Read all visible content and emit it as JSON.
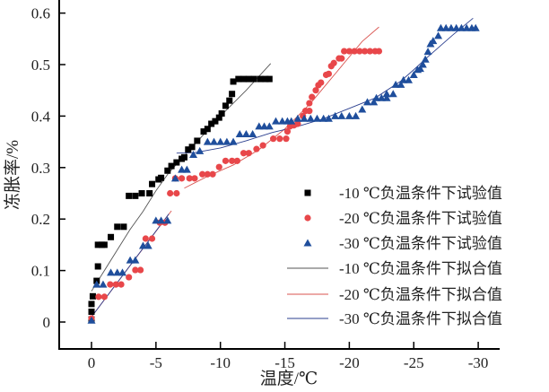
{
  "chart_data": {
    "type": "scatter",
    "title": "",
    "xlabel": "温度/℃",
    "ylabel": "冻胀率/%",
    "xlim": [
      2.5,
      -31.5
    ],
    "ylim": [
      -0.052,
      0.62
    ],
    "x_reversed": true,
    "grid": false,
    "legend_position": "right-middle",
    "xticks": [
      0,
      -5,
      -10,
      -15,
      -20,
      -25,
      -30
    ],
    "xtick_labels": [
      "0",
      "-5",
      "-10",
      "-15",
      "-20",
      "-25",
      "-30"
    ],
    "yticks": [
      0,
      0.1,
      0.2,
      0.3,
      0.4,
      0.5,
      0.6
    ],
    "ytick_labels": [
      "0",
      "0.1",
      "0.2",
      "0.3",
      "0.4",
      "0.5",
      "0.6"
    ],
    "series": [
      {
        "name": "-10 ℃负温条件下试验值",
        "kind": "marker",
        "marker": "square",
        "color": "#000000",
        "points": [
          [
            0,
            0.005
          ],
          [
            0,
            0.02
          ],
          [
            0,
            0.035
          ],
          [
            -0.1,
            0.05
          ],
          [
            -0.4,
            0.08
          ],
          [
            -0.5,
            0.108
          ],
          [
            -0.5,
            0.15
          ],
          [
            -0.8,
            0.15
          ],
          [
            -1.0,
            0.15
          ],
          [
            -1.5,
            0.165
          ],
          [
            -2.0,
            0.185
          ],
          [
            -2.5,
            0.185
          ],
          [
            -2.9,
            0.245
          ],
          [
            -3.4,
            0.245
          ],
          [
            -3.9,
            0.25
          ],
          [
            -4.5,
            0.25
          ],
          [
            -4.7,
            0.268
          ],
          [
            -5.2,
            0.277
          ],
          [
            -5.4,
            0.28
          ],
          [
            -5.9,
            0.294
          ],
          [
            -6.2,
            0.303
          ],
          [
            -6.6,
            0.31
          ],
          [
            -7.0,
            0.317
          ],
          [
            -7.2,
            0.32
          ],
          [
            -7.5,
            0.335
          ],
          [
            -7.8,
            0.34
          ],
          [
            -8.2,
            0.352
          ],
          [
            -8.7,
            0.37
          ],
          [
            -9.0,
            0.375
          ],
          [
            -9.3,
            0.385
          ],
          [
            -9.6,
            0.39
          ],
          [
            -9.9,
            0.397
          ],
          [
            -10.1,
            0.405
          ],
          [
            -10.4,
            0.42
          ],
          [
            -10.7,
            0.43
          ],
          [
            -10.9,
            0.443
          ],
          [
            -11.0,
            0.467
          ],
          [
            -11.4,
            0.472
          ],
          [
            -11.8,
            0.472
          ],
          [
            -12.2,
            0.472
          ],
          [
            -12.6,
            0.472
          ],
          [
            -13.1,
            0.472
          ],
          [
            -13.5,
            0.472
          ],
          [
            -13.8,
            0.472
          ]
        ]
      },
      {
        "name": "-20 ℃负温条件下试验值",
        "kind": "marker",
        "marker": "circle",
        "color": "#e8474a",
        "points": [
          [
            0,
            0.007
          ],
          [
            -0.55,
            0.049
          ],
          [
            -1.0,
            0.049
          ],
          [
            -1.45,
            0.073
          ],
          [
            -1.9,
            0.073
          ],
          [
            -2.3,
            0.073
          ],
          [
            -2.9,
            0.087
          ],
          [
            -3.4,
            0.101
          ],
          [
            -3.8,
            0.101
          ],
          [
            -4.2,
            0.162
          ],
          [
            -4.7,
            0.162
          ],
          [
            -5.3,
            0.193
          ],
          [
            -5.7,
            0.193
          ],
          [
            -6.1,
            0.25
          ],
          [
            -6.6,
            0.25
          ],
          [
            -6.5,
            0.279
          ],
          [
            -7.0,
            0.279
          ],
          [
            -7.6,
            0.279
          ],
          [
            -8.0,
            0.279
          ],
          [
            -8.6,
            0.287
          ],
          [
            -9.0,
            0.287
          ],
          [
            -9.4,
            0.287
          ],
          [
            -9.9,
            0.301
          ],
          [
            -10.4,
            0.313
          ],
          [
            -10.9,
            0.313
          ],
          [
            -11.3,
            0.313
          ],
          [
            -11.8,
            0.328
          ],
          [
            -12.2,
            0.328
          ],
          [
            -12.8,
            0.336
          ],
          [
            -13.3,
            0.343
          ],
          [
            -14.1,
            0.356
          ],
          [
            -14.6,
            0.356
          ],
          [
            -15.1,
            0.356
          ],
          [
            -15.2,
            0.37
          ],
          [
            -15.4,
            0.38
          ],
          [
            -15.7,
            0.382
          ],
          [
            -16.0,
            0.385
          ],
          [
            -16.4,
            0.4
          ],
          [
            -16.6,
            0.41
          ],
          [
            -16.9,
            0.41
          ],
          [
            -16.9,
            0.425
          ],
          [
            -17.1,
            0.437
          ],
          [
            -17.4,
            0.45
          ],
          [
            -17.6,
            0.46
          ],
          [
            -17.8,
            0.465
          ],
          [
            -18.2,
            0.48
          ],
          [
            -18.4,
            0.482
          ],
          [
            -18.6,
            0.497
          ],
          [
            -18.8,
            0.503
          ],
          [
            -19.2,
            0.512
          ],
          [
            -19.4,
            0.512
          ],
          [
            -19.6,
            0.526
          ],
          [
            -20.0,
            0.526
          ],
          [
            -20.4,
            0.526
          ],
          [
            -20.8,
            0.526
          ],
          [
            -21.2,
            0.526
          ],
          [
            -21.6,
            0.526
          ],
          [
            -22.0,
            0.526
          ],
          [
            -22.3,
            0.526
          ]
        ]
      },
      {
        "name": "-30 ℃负温条件下试验值",
        "kind": "marker",
        "marker": "triangle",
        "color": "#1f4e9c",
        "points": [
          [
            0,
            0.003
          ],
          [
            -0.4,
            0.073
          ],
          [
            -0.9,
            0.073
          ],
          [
            -1.5,
            0.096
          ],
          [
            -2.0,
            0.096
          ],
          [
            -2.4,
            0.096
          ],
          [
            -3.0,
            0.12
          ],
          [
            -3.4,
            0.12
          ],
          [
            -4.0,
            0.148
          ],
          [
            -4.4,
            0.148
          ],
          [
            -5.0,
            0.197
          ],
          [
            -5.4,
            0.197
          ],
          [
            -5.9,
            0.197
          ],
          [
            -6.5,
            0.279
          ],
          [
            -7.0,
            0.296
          ],
          [
            -7.4,
            0.296
          ],
          [
            -7.9,
            0.325
          ],
          [
            -8.4,
            0.332
          ],
          [
            -9.0,
            0.35
          ],
          [
            -9.5,
            0.35
          ],
          [
            -10.0,
            0.35
          ],
          [
            -10.5,
            0.35
          ],
          [
            -11.0,
            0.35
          ],
          [
            -11.5,
            0.365
          ],
          [
            -12.0,
            0.365
          ],
          [
            -12.5,
            0.365
          ],
          [
            -13.0,
            0.38
          ],
          [
            -13.4,
            0.38
          ],
          [
            -13.8,
            0.38
          ],
          [
            -14.3,
            0.39
          ],
          [
            -14.8,
            0.39
          ],
          [
            -15.2,
            0.39
          ],
          [
            -15.5,
            0.39
          ],
          [
            -16.0,
            0.395
          ],
          [
            -16.5,
            0.395
          ],
          [
            -17.0,
            0.395
          ],
          [
            -17.5,
            0.395
          ],
          [
            -18.0,
            0.395
          ],
          [
            -18.4,
            0.395
          ],
          [
            -18.9,
            0.4
          ],
          [
            -19.4,
            0.4
          ],
          [
            -20.0,
            0.4
          ],
          [
            -20.5,
            0.4
          ],
          [
            -21.0,
            0.413
          ],
          [
            -21.4,
            0.427
          ],
          [
            -21.9,
            0.427
          ],
          [
            -22.1,
            0.435
          ],
          [
            -22.5,
            0.435
          ],
          [
            -22.9,
            0.435
          ],
          [
            -22.9,
            0.443
          ],
          [
            -23.4,
            0.443
          ],
          [
            -23.6,
            0.461
          ],
          [
            -24.0,
            0.461
          ],
          [
            -24.2,
            0.47
          ],
          [
            -24.6,
            0.47
          ],
          [
            -25.0,
            0.48
          ],
          [
            -25.3,
            0.49
          ],
          [
            -25.5,
            0.492
          ],
          [
            -25.7,
            0.5
          ],
          [
            -25.9,
            0.51
          ],
          [
            -26.1,
            0.525
          ],
          [
            -26.3,
            0.54
          ],
          [
            -26.5,
            0.546
          ],
          [
            -26.9,
            0.556
          ],
          [
            -27.1,
            0.571
          ],
          [
            -27.5,
            0.571
          ],
          [
            -27.9,
            0.571
          ],
          [
            -28.3,
            0.571
          ],
          [
            -28.7,
            0.571
          ],
          [
            -29.1,
            0.571
          ],
          [
            -29.5,
            0.571
          ],
          [
            -29.8,
            0.571
          ]
        ]
      },
      {
        "name": "-10 ℃负温条件下拟合值",
        "kind": "line",
        "color": "#555555",
        "segments": [
          [
            [
              0,
              0.06
            ],
            [
              -1,
              0.1
            ],
            [
              -2,
              0.14
            ],
            [
              -3,
              0.18
            ],
            [
              -4,
              0.215
            ],
            [
              -5,
              0.255
            ],
            [
              -6,
              0.29
            ],
            [
              -8,
              0.345
            ],
            [
              -10,
              0.4
            ],
            [
              -12,
              0.45
            ],
            [
              -13.9,
              0.502
            ]
          ]
        ]
      },
      {
        "name": "-20 ℃负温条件下拟合值",
        "kind": "line",
        "color": "#d9534f",
        "segments": [
          [
            [
              0,
              0.01
            ],
            [
              -6.2,
              0.216
            ]
          ],
          [
            [
              -7.2,
              0.26
            ],
            [
              -9,
              0.283
            ],
            [
              -11,
              0.305
            ],
            [
              -13,
              0.335
            ],
            [
              -14,
              0.355
            ],
            [
              -15,
              0.375
            ],
            [
              -16,
              0.4
            ],
            [
              -17,
              0.425
            ],
            [
              -18,
              0.455
            ],
            [
              -19,
              0.485
            ],
            [
              -20,
              0.515
            ],
            [
              -21,
              0.545
            ],
            [
              -22.3,
              0.573
            ]
          ]
        ]
      },
      {
        "name": "-30 ℃负温条件下拟合值",
        "kind": "line",
        "color": "#2b3f8f",
        "segments": [
          [
            [
              0,
              0.01
            ],
            [
              -6.0,
              0.21
            ]
          ],
          [
            [
              -6.6,
              0.328
            ],
            [
              -8,
              0.329
            ],
            [
              -10,
              0.338
            ],
            [
              -12,
              0.352
            ],
            [
              -14,
              0.368
            ],
            [
              -16,
              0.38
            ],
            [
              -18,
              0.395
            ],
            [
              -20,
              0.415
            ],
            [
              -22,
              0.435
            ],
            [
              -24,
              0.468
            ],
            [
              -25,
              0.49
            ],
            [
              -26,
              0.513
            ],
            [
              -27,
              0.535
            ],
            [
              -28,
              0.557
            ],
            [
              -29.6,
              0.59
            ]
          ]
        ]
      }
    ]
  }
}
